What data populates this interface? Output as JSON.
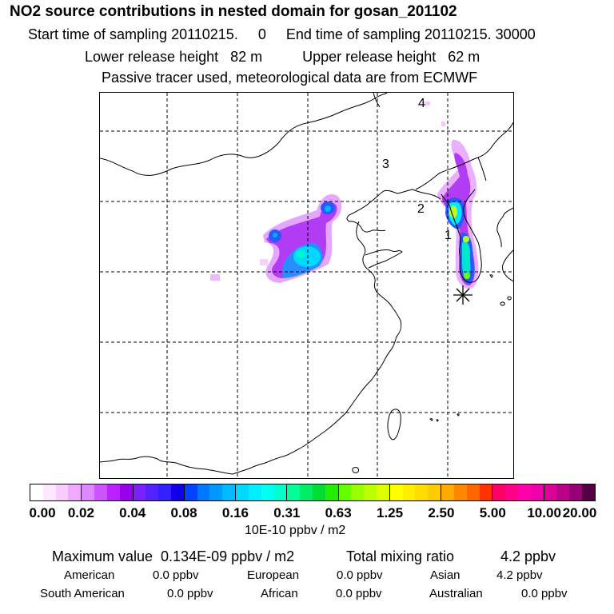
{
  "header": {
    "title": "NO2 source contributions in nested domain for gosan_201102",
    "sampling_line": "Start time of sampling 20110215.     0     End time of sampling 20110215. 30000",
    "release_line": "Lower release height   82 m          Upper release height   62 m",
    "tracer_line": "Passive tracer used, meteorological data are from ECMWF"
  },
  "map": {
    "labels": [
      "1",
      "2",
      "3",
      "4"
    ],
    "receptor_icon": "asterisk-icon"
  },
  "colorbar": {
    "ticks": [
      "0.00",
      "0.02",
      "0.04",
      "0.08",
      "0.16",
      "0.31",
      "0.63",
      "1.25",
      "2.50",
      "5.00",
      "10.00",
      "20.00"
    ],
    "unit": "10E-10 ppbv / m2",
    "colors": [
      [
        "#ffffff",
        "#fde8ff",
        "#f8ccff",
        "#f0aaff"
      ],
      [
        "#dd88ff",
        "#cc55ff",
        "#bb22ff",
        "#9900ee"
      ],
      [
        "#7722ff",
        "#5522ff",
        "#3322ff",
        "#1100ee"
      ],
      [
        "#0044ff",
        "#0077ff",
        "#0099ff",
        "#00bbff"
      ],
      [
        "#00d8ff",
        "#00eeff",
        "#00ffee",
        "#00ffcc"
      ],
      [
        "#00ff99",
        "#00ee66",
        "#00dd33",
        "#22ee00"
      ],
      [
        "#66ff00",
        "#99ff00",
        "#bbff00",
        "#ddff00"
      ],
      [
        "#ffff00",
        "#ffee00",
        "#ffdd00",
        "#ffcc00"
      ],
      [
        "#ffaa00",
        "#ff8800",
        "#ff6600",
        "#ff3300"
      ],
      [
        "#ff0066",
        "#ff0088",
        "#ff00aa",
        "#ee00aa"
      ],
      [
        "#dd0099",
        "#bb0088",
        "#990077",
        "#550044"
      ]
    ]
  },
  "summary": {
    "max_label": "Maximum value  0.134E-09 ppbv / m2",
    "total_label": "Total mixing ratio",
    "total_value": "4.2 ppbv",
    "rows": [
      [
        [
          "American",
          "0.0 ppbv"
        ],
        [
          "European",
          "0.0 ppbv"
        ],
        [
          "Asian",
          "4.2 ppbv"
        ]
      ],
      [
        [
          "South American",
          "0.0 ppbv"
        ],
        [
          "African",
          "0.0 ppbv"
        ],
        [
          "Australian",
          "0.0 ppbv"
        ]
      ]
    ]
  }
}
